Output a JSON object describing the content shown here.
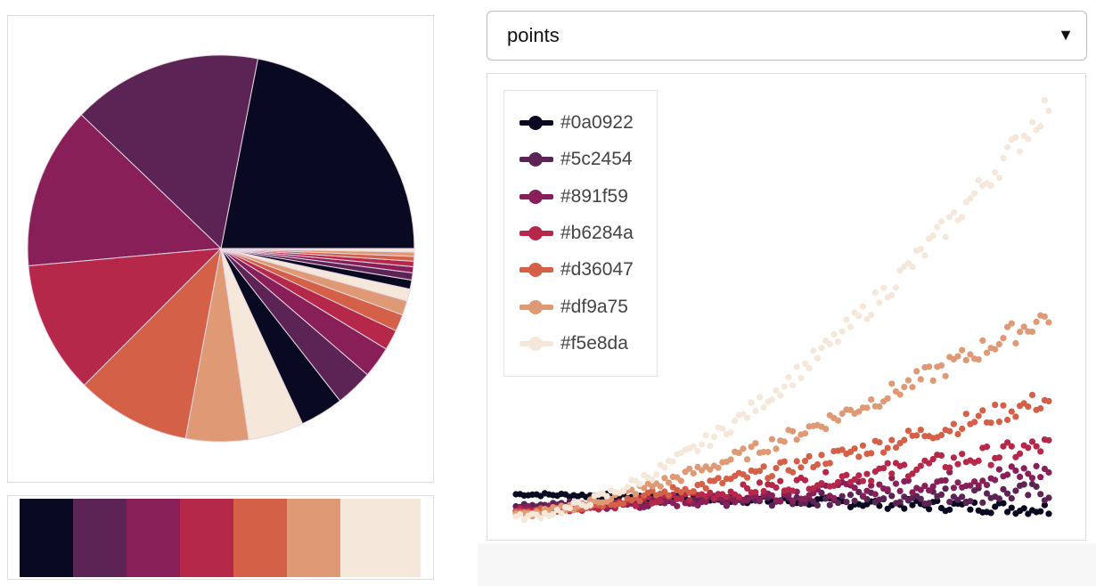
{
  "palette": [
    "#0a0922",
    "#5c2454",
    "#891f59",
    "#b6284a",
    "#d36047",
    "#df9a75",
    "#f5e8da"
  ],
  "select": {
    "value": "points",
    "caret": "▼"
  },
  "chart_data": [
    {
      "type": "pie",
      "slices": [
        {
          "value": 21.8,
          "color": "#0a0922"
        },
        {
          "value": 15.8,
          "color": "#5c2454"
        },
        {
          "value": 13.5,
          "color": "#891f59"
        },
        {
          "value": 11.0,
          "color": "#b6284a"
        },
        {
          "value": 9.5,
          "color": "#d36047"
        },
        {
          "value": 5.2,
          "color": "#df9a75"
        },
        {
          "value": 4.6,
          "color": "#f5e8da"
        },
        {
          "value": 3.6,
          "color": "#0a0922"
        },
        {
          "value": 3.1,
          "color": "#5c2454"
        },
        {
          "value": 2.6,
          "color": "#891f59"
        },
        {
          "value": 1.7,
          "color": "#b6284a"
        },
        {
          "value": 1.4,
          "color": "#d36047"
        },
        {
          "value": 1.2,
          "color": "#df9a75"
        },
        {
          "value": 1.0,
          "color": "#f5e8da"
        },
        {
          "value": 0.75,
          "color": "#0a0922"
        },
        {
          "value": 0.6,
          "color": "#5c2454"
        },
        {
          "value": 0.5,
          "color": "#891f59"
        },
        {
          "value": 0.45,
          "color": "#b6284a"
        },
        {
          "value": 0.4,
          "color": "#d36047"
        },
        {
          "value": 0.35,
          "color": "#df9a75"
        },
        {
          "value": 0.3,
          "color": "#f5e8da"
        }
      ]
    },
    {
      "type": "scatter",
      "x_range": [
        0,
        1
      ],
      "y_range": [
        0,
        1
      ],
      "points_per_series": 130,
      "series": [
        {
          "name": "#0a0922",
          "color": "#0a0922",
          "y_start": 0.055,
          "y_end": 0.02,
          "exponent": 1.2,
          "spread": 0.012
        },
        {
          "name": "#5c2454",
          "color": "#5c2454",
          "y_start": 0.03,
          "y_end": 0.06,
          "exponent": 1.4,
          "spread": 0.018
        },
        {
          "name": "#891f59",
          "color": "#891f59",
          "y_start": 0.02,
          "y_end": 0.11,
          "exponent": 1.4,
          "spread": 0.02
        },
        {
          "name": "#b6284a",
          "color": "#b6284a",
          "y_start": 0.015,
          "y_end": 0.17,
          "exponent": 1.35,
          "spread": 0.02
        },
        {
          "name": "#d36047",
          "color": "#d36047",
          "y_start": 0.01,
          "y_end": 0.28,
          "exponent": 1.35,
          "spread": 0.02
        },
        {
          "name": "#df9a75",
          "color": "#df9a75",
          "y_start": 0.005,
          "y_end": 0.48,
          "exponent": 1.4,
          "spread": 0.022
        },
        {
          "name": "#f5e8da",
          "color": "#f5e8da",
          "y_start": 0.0,
          "y_end": 0.98,
          "exponent": 1.65,
          "spread": 0.025
        }
      ]
    }
  ]
}
